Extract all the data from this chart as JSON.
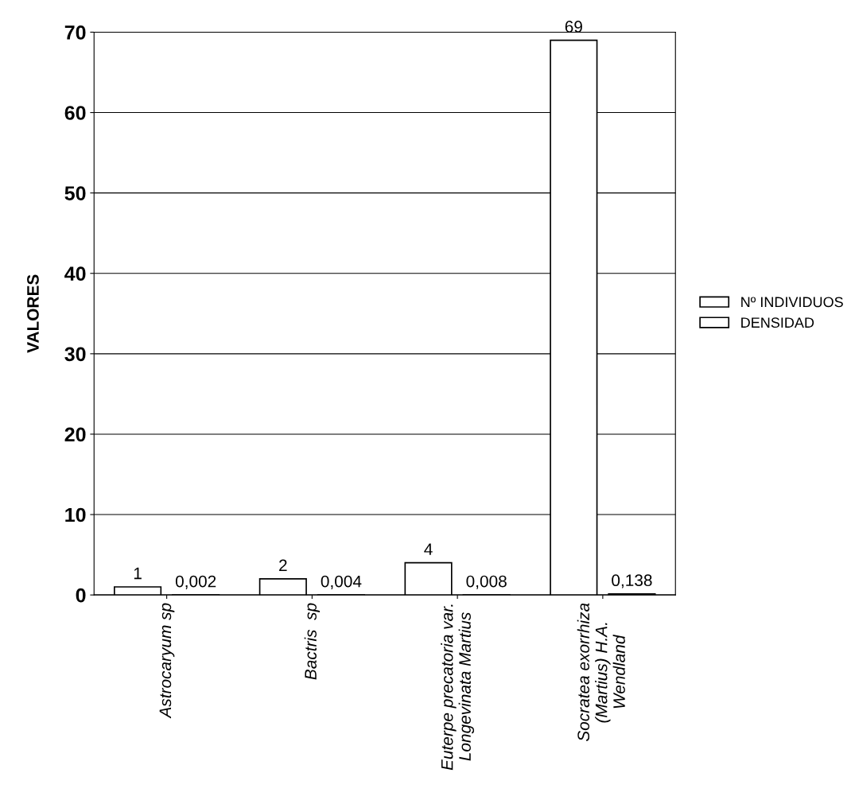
{
  "chart_data": {
    "type": "bar",
    "ylabel": "VALORES",
    "categories": [
      "Astrocaryum sp",
      "Bactris  sp",
      "Euterpe precatoria var.\nLongevinata Martius",
      "Socratea exorrhiza\n(Martius) H.A.\nWendland"
    ],
    "series": [
      {
        "name": "Nº INDIVIDUOS",
        "color": "#ffffff",
        "values": [
          1,
          2,
          4,
          69
        ],
        "value_labels": [
          "1",
          "2",
          "4",
          "69"
        ]
      },
      {
        "name": "DENSIDAD",
        "color": "#ffffff",
        "values": [
          0.002,
          0.004,
          0.008,
          0.138
        ],
        "value_labels": [
          "0,002",
          "0,004",
          "0,008",
          "0,138"
        ]
      }
    ],
    "ylim": [
      0,
      70
    ],
    "yticks": [
      0,
      10,
      20,
      30,
      40,
      50,
      60,
      70
    ],
    "grid": "y",
    "legend": "right"
  }
}
